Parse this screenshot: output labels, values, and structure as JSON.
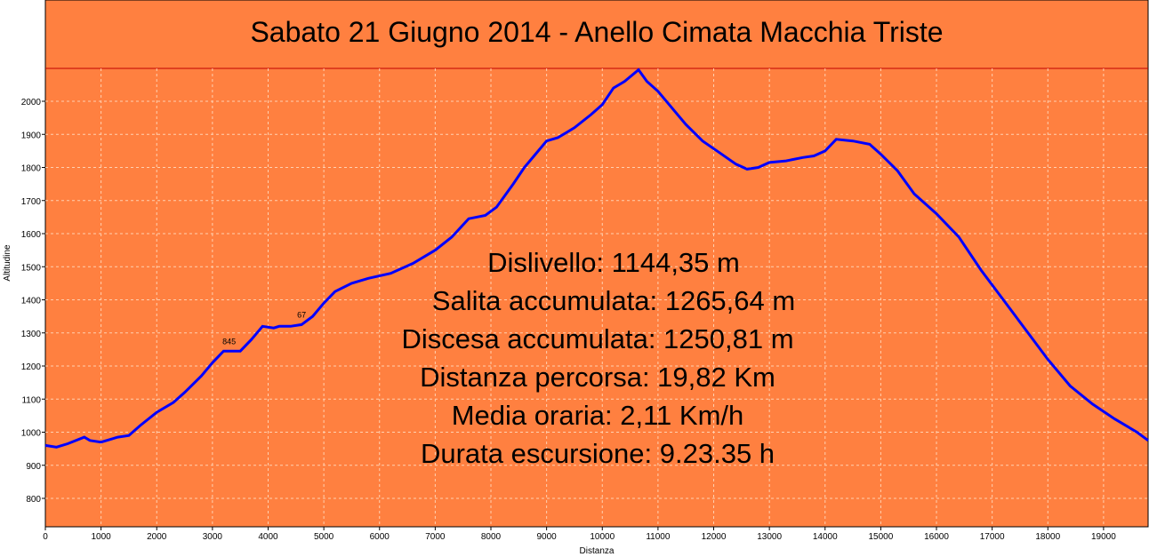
{
  "chart_data": {
    "type": "line",
    "title": "Sabato 21 Giugno 2014 - Anello Cimata Macchia Triste",
    "xlabel": "Distanza",
    "ylabel": "Altitudine",
    "xlim": [
      0,
      19800
    ],
    "ylim": [
      700,
      2100
    ],
    "x_ticks": [
      0,
      1000,
      2000,
      3000,
      4000,
      5000,
      6000,
      7000,
      8000,
      9000,
      10000,
      11000,
      12000,
      13000,
      14000,
      15000,
      16000,
      17000,
      18000,
      19000
    ],
    "y_ticks": [
      800,
      900,
      1000,
      1100,
      1200,
      1300,
      1400,
      1500,
      1600,
      1700,
      1800,
      1900,
      2000
    ],
    "grid": true,
    "colors": {
      "background": "#ff8040",
      "line": "#0000ff",
      "grid": "#ffd0b0",
      "title_rule": "#c00000"
    },
    "series": [
      {
        "x": [
          0,
          200,
          400,
          700,
          800,
          1000,
          1300,
          1500,
          1700,
          2000,
          2300,
          2500,
          2800,
          3000,
          3200,
          3500,
          3700,
          3900,
          4100,
          4200,
          4400,
          4600,
          4800,
          5000,
          5200,
          5500,
          5800,
          6200,
          6600,
          7000,
          7300,
          7600,
          7900,
          8100,
          8400,
          8600,
          8800,
          9000,
          9200,
          9500,
          9800,
          10000,
          10200,
          10400,
          10650,
          10800,
          11000,
          11200,
          11500,
          11800,
          12100,
          12400,
          12600,
          12800,
          13000,
          13300,
          13600,
          13800,
          14000,
          14200,
          14500,
          14800,
          15000,
          15300,
          15600,
          16000,
          16400,
          16800,
          17200,
          17600,
          18000,
          18400,
          18800,
          19200,
          19600,
          19800
        ],
        "y": [
          960,
          955,
          965,
          985,
          975,
          970,
          985,
          990,
          1020,
          1060,
          1090,
          1120,
          1170,
          1210,
          1245,
          1245,
          1280,
          1320,
          1315,
          1320,
          1320,
          1325,
          1350,
          1390,
          1425,
          1450,
          1465,
          1480,
          1510,
          1550,
          1590,
          1645,
          1655,
          1680,
          1750,
          1800,
          1840,
          1880,
          1890,
          1920,
          1960,
          1990,
          2040,
          2060,
          2095,
          2060,
          2030,
          1990,
          1930,
          1880,
          1845,
          1810,
          1795,
          1800,
          1815,
          1820,
          1830,
          1835,
          1850,
          1885,
          1880,
          1870,
          1840,
          1790,
          1720,
          1660,
          1590,
          1490,
          1400,
          1310,
          1220,
          1140,
          1085,
          1040,
          1000,
          975
        ]
      }
    ],
    "waypoints": [
      {
        "label": "845",
        "x": 3300,
        "y": 1255
      },
      {
        "label": "67",
        "x": 4600,
        "y": 1335
      }
    ],
    "annotations": [
      "Dislivello: 1144,35 m",
      "Salita accumulata: 1265,64 m",
      "Discesa accumulata: 1250,81 m",
      "Distanza percorsa: 19,82 Km",
      "Media oraria: 2,11 Km/h",
      "Durata escursione: 9.23.35 h"
    ]
  }
}
